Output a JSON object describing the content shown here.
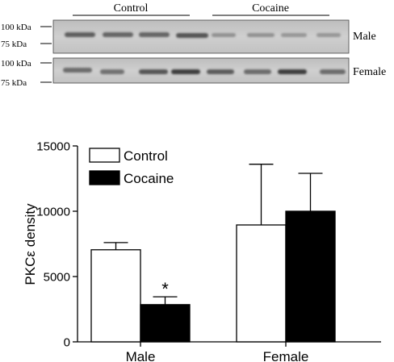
{
  "blot": {
    "group_labels": [
      "Control",
      "Cocaine"
    ],
    "marker_labels": [
      "100 kDa",
      "75 kDa"
    ],
    "row_labels": [
      "Male",
      "Female"
    ]
  },
  "chart_data": {
    "type": "bar",
    "title": "",
    "categories": [
      "Male",
      "Female"
    ],
    "xlabel": "",
    "ylabel": "PKCε density",
    "ylim": [
      0,
      15000
    ],
    "yticks": [
      0,
      5000,
      10000,
      15000
    ],
    "grid": false,
    "legend_position": "top-left",
    "series": [
      {
        "name": "Control",
        "values": [
          7050,
          8950
        ],
        "errors": [
          550,
          4650
        ],
        "color": "#ffffff"
      },
      {
        "name": "Cocaine",
        "values": [
          2850,
          10000
        ],
        "errors": [
          600,
          2900
        ],
        "color": "#000000"
      }
    ],
    "annotations": [
      {
        "category": "Male",
        "series": "Cocaine",
        "text": "*"
      }
    ]
  }
}
